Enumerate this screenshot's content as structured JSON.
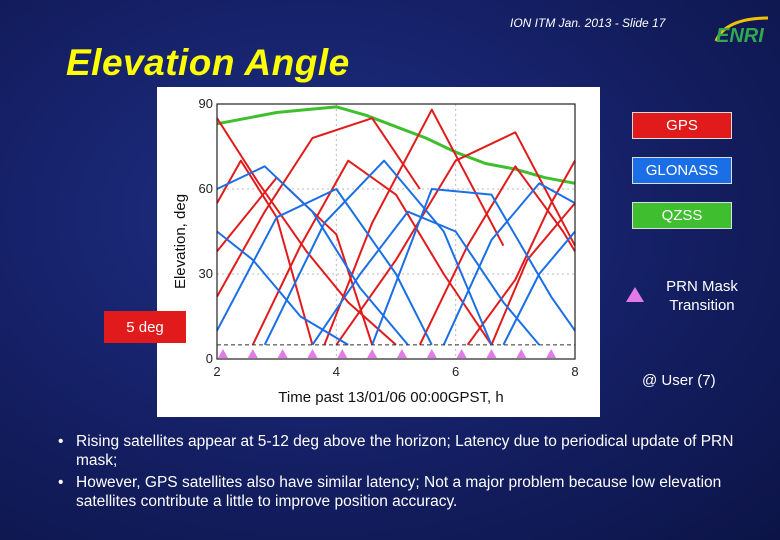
{
  "header": {
    "note": "ION ITM Jan. 2013 - Slide 17",
    "logo_text": "ENRI",
    "title": "Elevation Angle"
  },
  "colors": {
    "background": "#141f63",
    "title": "#ffff00",
    "gps": "#e11b1b",
    "glonass": "#1a6fe6",
    "qzss": "#3fbf2f",
    "mask_marker": "#e27be6"
  },
  "legend": {
    "gps": "GPS",
    "glonass": "GLONASS",
    "qzss": "QZSS",
    "mask_transition": "PRN Mask Transition"
  },
  "callouts": {
    "mask_angle": "5 deg",
    "user": "@ User (7)"
  },
  "chart_data": {
    "type": "line",
    "xlabel": "Time past 13/01/06 00:00GPST, h",
    "ylabel": "Elevation, deg",
    "xlim": [
      2,
      8
    ],
    "ylim": [
      0,
      90
    ],
    "xticks": [
      "2",
      "4",
      "6",
      "8"
    ],
    "yticks": [
      "0",
      "30",
      "60",
      "90"
    ],
    "mask_line_deg": 5,
    "mask_transition_times": [
      2.1,
      2.6,
      3.1,
      3.6,
      4.1,
      4.6,
      5.1,
      5.6,
      6.1,
      6.6,
      7.1,
      7.6
    ],
    "series": [
      {
        "group": "QZSS",
        "x": [
          2.0,
          2.5,
          3.0,
          3.5,
          4.0,
          4.5,
          5.0,
          5.5,
          6.0,
          6.5,
          7.0,
          7.5,
          8.0
        ],
        "y": [
          83,
          85,
          87,
          88,
          89,
          86,
          82,
          78,
          73,
          69,
          67,
          64,
          62
        ]
      },
      {
        "group": "GPS",
        "x": [
          2.0,
          2.8,
          3.6,
          4.6,
          5.4
        ],
        "y": [
          22,
          52,
          78,
          85,
          60
        ]
      },
      {
        "group": "GPS",
        "x": [
          2.6,
          3.4,
          4.2,
          5.0,
          5.8,
          6.6
        ],
        "y": [
          5,
          40,
          70,
          58,
          30,
          5
        ]
      },
      {
        "group": "GPS",
        "x": [
          2.0,
          2.7,
          3.5,
          4.2,
          5.0
        ],
        "y": [
          85,
          62,
          38,
          20,
          5
        ]
      },
      {
        "group": "GPS",
        "x": [
          4.0,
          5.0,
          6.0,
          7.0,
          8.0
        ],
        "y": [
          5,
          35,
          70,
          80,
          40
        ]
      },
      {
        "group": "GPS",
        "x": [
          5.4,
          6.2,
          7.0,
          7.8,
          8.0
        ],
        "y": [
          5,
          40,
          68,
          45,
          38
        ]
      },
      {
        "group": "GPS",
        "x": [
          2.0,
          3.0,
          4.0,
          4.6
        ],
        "y": [
          38,
          64,
          44,
          5
        ]
      },
      {
        "group": "GPS",
        "x": [
          6.2,
          7.0,
          7.6,
          8.0
        ],
        "y": [
          5,
          28,
          55,
          70
        ]
      },
      {
        "group": "GPS",
        "x": [
          2.0,
          2.4,
          3.0,
          3.6
        ],
        "y": [
          55,
          70,
          50,
          5
        ]
      },
      {
        "group": "GPS",
        "x": [
          3.8,
          4.6,
          5.6,
          6.8
        ],
        "y": [
          5,
          48,
          88,
          40
        ]
      },
      {
        "group": "GPS",
        "x": [
          6.6,
          7.2,
          8.0
        ],
        "y": [
          5,
          35,
          55
        ]
      },
      {
        "group": "GLONASS",
        "x": [
          2.0,
          3.0,
          4.0,
          5.0,
          5.6
        ],
        "y": [
          10,
          50,
          60,
          30,
          5
        ]
      },
      {
        "group": "GLONASS",
        "x": [
          2.8,
          3.8,
          4.8,
          5.8,
          6.6
        ],
        "y": [
          5,
          48,
          70,
          45,
          5
        ]
      },
      {
        "group": "GLONASS",
        "x": [
          4.6,
          5.6,
          6.6,
          7.6,
          8.0
        ],
        "y": [
          5,
          60,
          58,
          22,
          10
        ]
      },
      {
        "group": "GLONASS",
        "x": [
          2.0,
          2.6,
          3.4,
          4.2
        ],
        "y": [
          45,
          35,
          15,
          5
        ]
      },
      {
        "group": "GLONASS",
        "x": [
          5.8,
          6.6,
          7.4,
          8.0
        ],
        "y": [
          5,
          42,
          62,
          55
        ]
      },
      {
        "group": "GLONASS",
        "x": [
          2.0,
          2.8,
          3.6,
          4.4,
          5.2
        ],
        "y": [
          60,
          68,
          52,
          25,
          5
        ]
      },
      {
        "group": "GLONASS",
        "x": [
          3.6,
          4.4,
          5.2,
          6.0,
          6.8,
          7.4
        ],
        "y": [
          5,
          30,
          52,
          45,
          20,
          5
        ]
      },
      {
        "group": "GLONASS",
        "x": [
          6.8,
          7.4,
          8.0
        ],
        "y": [
          5,
          30,
          45
        ]
      }
    ]
  },
  "bullets": [
    "Rising satellites appear at 5-12 deg above the horizon; Latency due to periodical update of PRN mask;",
    "However, GPS satellites also have similar latency; Not a major problem because low elevation satellites contribute a little to improve position accuracy."
  ]
}
